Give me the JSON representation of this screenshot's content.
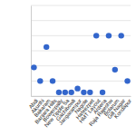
{
  "chart_data": {
    "type": "scatter",
    "categories": [
      "Abdi",
      "Akurthi",
      "Bakaram",
      "Banjara Hills",
      "Bowenpally",
      "New Tipple Sa",
      "Gachibowli",
      "Jangarampur",
      "Nagole",
      "Hafeezpet",
      "HMT Layout",
      "Ardena",
      "Raja Rajeshw",
      "Bolarum",
      "Gill Nagar",
      "Kondapur"
    ],
    "values": [
      1.9,
      1,
      3.25,
      1,
      0.25,
      0.25,
      0.25,
      0.5,
      0.25,
      0.25,
      4,
      0.25,
      4,
      1.75,
      4,
      1
    ],
    "color": "#3366cc",
    "marker": "circle",
    "ylim": [
      0,
      6
    ],
    "yticks": [
      0,
      1,
      2,
      3,
      4,
      5,
      6
    ],
    "grid": true,
    "tick_labels": "x"
  }
}
